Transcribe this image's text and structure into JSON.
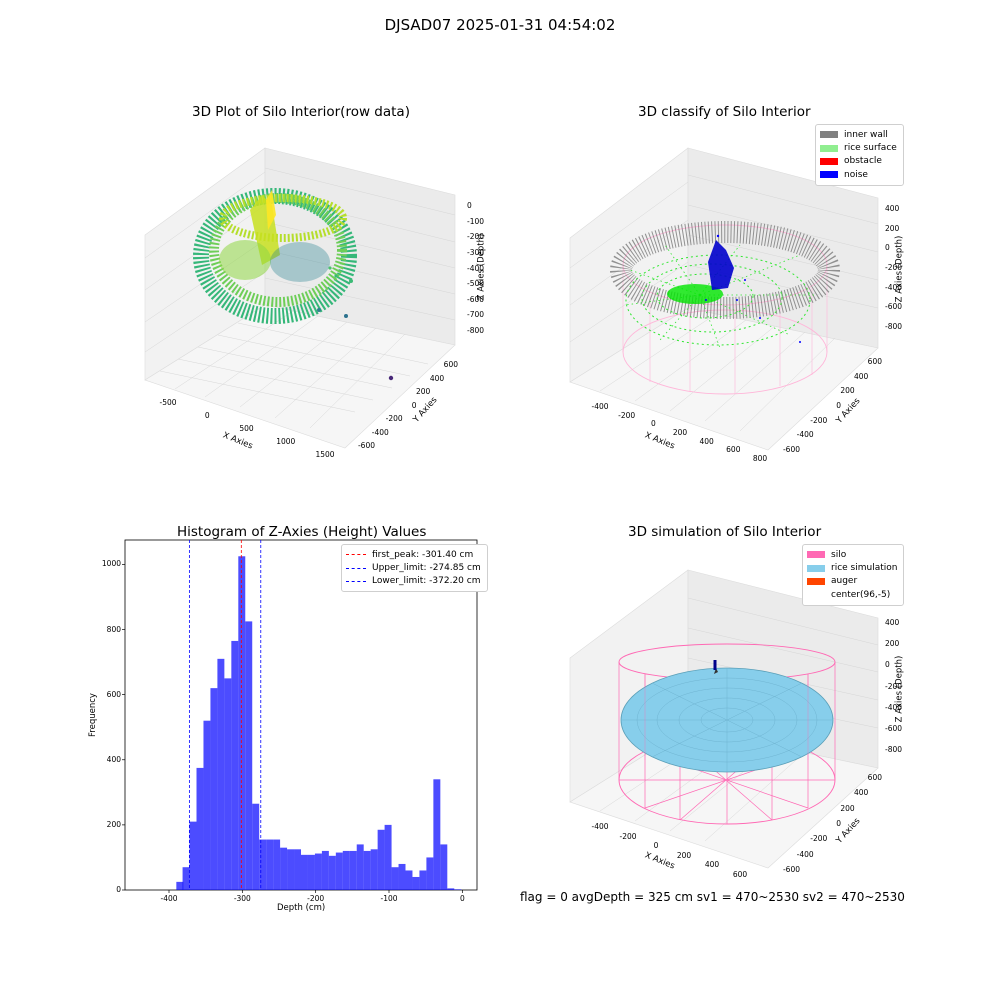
{
  "page": {
    "title": "DJSAD07 2025-01-31 04:54:02",
    "footer": "flag = 0     avgDepth = 325 cm  sv1 = 470~2530  sv2 = 470~2530"
  },
  "panels": {
    "raw": {
      "title": "3D Plot of Silo Interior(row data)",
      "xlabel": "X Axies",
      "ylabel": "Y Axies",
      "zlabel": "Z Axies (Depth)",
      "xticks": [
        "-500",
        "0",
        "500",
        "1000",
        "1500"
      ],
      "yticks": [
        "600",
        "400",
        "200",
        "0",
        "-200",
        "-400",
        "-600"
      ],
      "zticks": [
        "0",
        "-100",
        "-200",
        "-300",
        "-400",
        "-500",
        "-600",
        "-700",
        "-800"
      ]
    },
    "classify": {
      "title": "3D classify of Silo Interior",
      "xlabel": "X Axies",
      "ylabel": "Y Axies",
      "zlabel": "Z Axies (Depth)",
      "xticks": [
        "-400",
        "-200",
        "0",
        "200",
        "400",
        "600",
        "800"
      ],
      "yticks": [
        "600",
        "400",
        "200",
        "0",
        "-200",
        "-400",
        "-600"
      ],
      "zticks": [
        "400",
        "200",
        "0",
        "-200",
        "-400",
        "-600",
        "-800"
      ],
      "legend": [
        {
          "label": "inner wall",
          "color": "#808080"
        },
        {
          "label": "rice surface",
          "color": "#90ee90"
        },
        {
          "label": "obstacle",
          "color": "#ff0000"
        },
        {
          "label": "noise",
          "color": "#0000ff"
        }
      ]
    },
    "simulation": {
      "title": "3D simulation of Silo Interior",
      "xlabel": "X Axies",
      "ylabel": "Y Axies",
      "zlabel": "Z Axies (Depth)",
      "xticks": [
        "-400",
        "-200",
        "0",
        "200",
        "400",
        "600"
      ],
      "yticks": [
        "600",
        "400",
        "200",
        "0",
        "-200",
        "-400",
        "-600"
      ],
      "zticks": [
        "400",
        "200",
        "0",
        "-200",
        "-400",
        "-600",
        "-800"
      ],
      "legend": [
        {
          "label": "silo",
          "color": "#ff69b4"
        },
        {
          "label": "rice simulation",
          "color": "#87ceeb"
        },
        {
          "label": "auger",
          "color": "#ff4500"
        },
        {
          "label": "center(96,-5)",
          "color": "#ffffff"
        }
      ]
    }
  },
  "chart_data": {
    "type": "bar",
    "title": "Histogram of Z-Axies (Height) Values",
    "xlabel": "Depth (cm)",
    "ylabel": "Frequency",
    "xlim": [
      -460,
      20
    ],
    "ylim": [
      0,
      1075
    ],
    "bar_color": "#0000ff",
    "bin_width": 9.5,
    "bins_left": [
      -390,
      -381.5,
      -372,
      -362.5,
      -353,
      -343.5,
      -334,
      -324.5,
      -315,
      -305.5,
      -296,
      -286.5,
      -277,
      -267.5,
      -258,
      -248.5,
      -239,
      -229.5,
      -220,
      -210.5,
      -201,
      -191.5,
      -182,
      -172.5,
      -163,
      -153.5,
      -144,
      -134.5,
      -125,
      -115.5,
      -106,
      -96.5,
      -87,
      -77.5,
      -68,
      -58.5,
      -49,
      -39.5,
      -30,
      -20.5,
      -11
    ],
    "values": [
      25,
      70,
      210,
      375,
      520,
      620,
      710,
      650,
      765,
      1025,
      825,
      265,
      155,
      155,
      155,
      130,
      125,
      125,
      108,
      108,
      112,
      120,
      105,
      115,
      120,
      120,
      140,
      120,
      125,
      185,
      200,
      70,
      80,
      60,
      40,
      60,
      100,
      340,
      140,
      5,
      2
    ],
    "xticks": [
      -400,
      -300,
      -200,
      -100,
      0
    ],
    "yticks": [
      0,
      200,
      400,
      600,
      800,
      1000
    ],
    "vlines": [
      {
        "label": "first_peak: -301.40 cm",
        "x": -301.4,
        "color": "#ff0000"
      },
      {
        "label": "Upper_limit: -274.85 cm",
        "x": -274.85,
        "color": "#0000ff"
      },
      {
        "label": "Lower_limit: -372.20 cm",
        "x": -372.2,
        "color": "#0000ff"
      }
    ]
  }
}
